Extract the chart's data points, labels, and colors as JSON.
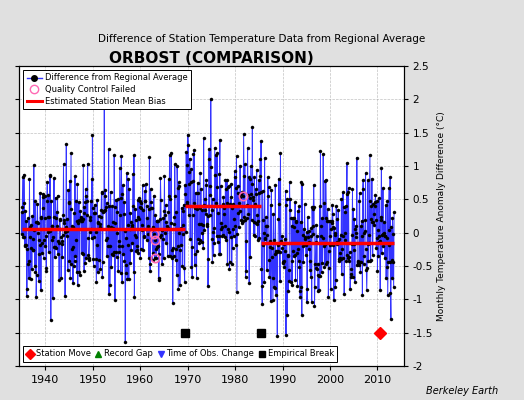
{
  "title": "ORBOST (COMPARISON)",
  "subtitle": "Difference of Station Temperature Data from Regional Average",
  "ylabel_right": "Monthly Temperature Anomaly Difference (°C)",
  "watermark": "Berkeley Earth",
  "xlim": [
    1934.5,
    2015.5
  ],
  "ylim": [
    -2.0,
    2.5
  ],
  "yticks": [
    -2,
    -1.5,
    -1,
    -0.5,
    0,
    0.5,
    1,
    1.5,
    2,
    2.5
  ],
  "xticks": [
    1940,
    1950,
    1960,
    1970,
    1980,
    1990,
    2000,
    2010
  ],
  "seed": 42,
  "start_year": 1935.0,
  "end_year": 2013.5,
  "bias1_start": 1935.0,
  "bias1_end": 1969.5,
  "bias1_value": 0.05,
  "bias2_start": 1969.5,
  "bias2_end": 1985.5,
  "bias2_value": 0.4,
  "bias3_start": 1985.5,
  "bias3_end": 2013.5,
  "bias3_value": -0.15,
  "empirical_breaks": [
    1969.5,
    1985.5
  ],
  "station_moves": [
    2010.5
  ],
  "obs_changes": [],
  "qc_failed_indices": [
    335,
    336,
    337,
    560
  ],
  "line_color": "#3333FF",
  "line_color_light": "#9999FF",
  "bias_color": "#FF0000",
  "marker_color": "#000000",
  "qc_color": "#FF69B4",
  "background_color": "#E0E0E0",
  "plot_bg_color": "#FFFFFF",
  "grid_color": "#999999"
}
